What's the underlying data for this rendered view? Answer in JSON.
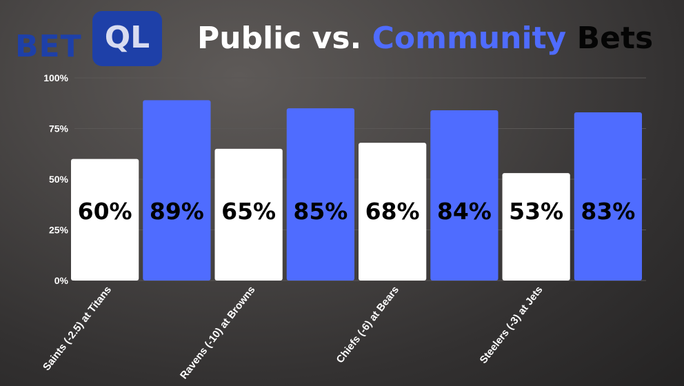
{
  "logo": {
    "part1": "BET",
    "part2": "QL"
  },
  "title": {
    "word1": "Public",
    "word2": "vs.",
    "word3": "Community",
    "word4": "Bets"
  },
  "colors": {
    "public": "#ffffff",
    "community": "#4f6cff",
    "brand": "#1e40a8"
  },
  "chart_data": {
    "type": "bar",
    "title": "Public vs. Community Bets",
    "categories": [
      "Saints (-2.5) at Titans",
      "Ravens (-10) at Browns",
      "Chiefs (-6) at Bears",
      "Steelers (-3) at Jets"
    ],
    "series": [
      {
        "values": [
          60,
          65,
          68,
          53
        ],
        "labels": [
          "60%",
          "65%",
          "68%",
          "53%"
        ]
      },
      {
        "values": [
          89,
          85,
          84,
          83
        ],
        "labels": [
          "89%",
          "85%",
          "84%",
          "83%"
        ]
      }
    ],
    "ylim": [
      0,
      100
    ],
    "yticks": [
      "0%",
      "25%",
      "50%",
      "75%",
      "100%"
    ],
    "grid": true,
    "xlabel": "",
    "ylabel": ""
  }
}
